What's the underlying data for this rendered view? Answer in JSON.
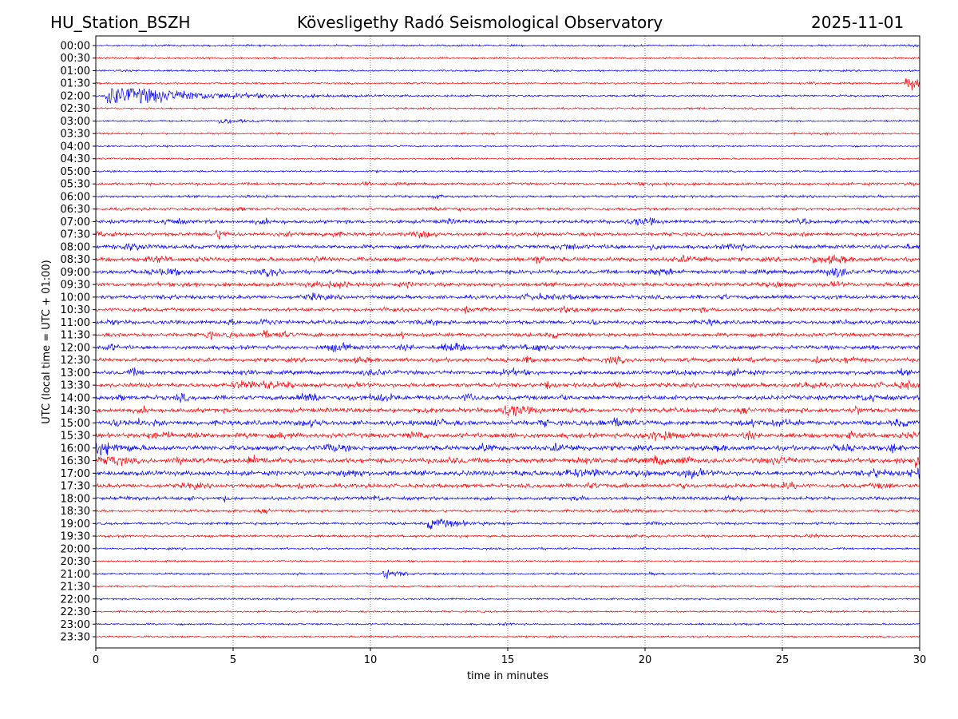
{
  "chart_data": {
    "type": "line",
    "title_left": "HU_Station_BSZH",
    "title_center": "Kövesligethy Radó Seismological Observatory",
    "title_right": "2025-11-01",
    "xlabel": "time in minutes",
    "ylabel": "UTC (local time = UTC + 01:00)",
    "xlim": [
      0,
      30
    ],
    "x_ticks": [
      "0",
      "5",
      "10",
      "15",
      "20",
      "25",
      "30"
    ],
    "x_tick_values": [
      0,
      5,
      10,
      15,
      20,
      25,
      30
    ],
    "grid": "vertical dotted at x ticks",
    "colors": {
      "even_rows": "#0000ff",
      "odd_rows": "#ff0000",
      "frame": "#000000",
      "grid": "#555555"
    },
    "rows": [
      {
        "label": "00:00",
        "activity": 0.12
      },
      {
        "label": "00:30",
        "activity": 0.12
      },
      {
        "label": "01:00",
        "activity": 0.12
      },
      {
        "label": "01:30",
        "activity": 0.12,
        "events": [
          {
            "t": 29.5,
            "amp": 0.9,
            "dur": 1.2
          }
        ]
      },
      {
        "label": "02:00",
        "activity": 0.15,
        "events": [
          {
            "t": 0.4,
            "amp": 1.6,
            "dur": 2.5
          }
        ]
      },
      {
        "label": "02:30",
        "activity": 0.1
      },
      {
        "label": "03:00",
        "activity": 0.1,
        "events": [
          {
            "t": 4.5,
            "amp": 0.4,
            "dur": 0.6
          }
        ]
      },
      {
        "label": "03:30",
        "activity": 0.1
      },
      {
        "label": "04:00",
        "activity": 0.1
      },
      {
        "label": "04:30",
        "activity": 0.1
      },
      {
        "label": "05:00",
        "activity": 0.12
      },
      {
        "label": "05:30",
        "activity": 0.3
      },
      {
        "label": "06:00",
        "activity": 0.25
      },
      {
        "label": "06:30",
        "activity": 0.3
      },
      {
        "label": "07:00",
        "activity": 0.5
      },
      {
        "label": "07:30",
        "activity": 0.5
      },
      {
        "label": "08:00",
        "activity": 0.55
      },
      {
        "label": "08:30",
        "activity": 0.65
      },
      {
        "label": "09:00",
        "activity": 0.65
      },
      {
        "label": "09:30",
        "activity": 0.6
      },
      {
        "label": "10:00",
        "activity": 0.55
      },
      {
        "label": "10:30",
        "activity": 0.5
      },
      {
        "label": "11:00",
        "activity": 0.55
      },
      {
        "label": "11:30",
        "activity": 0.55
      },
      {
        "label": "12:00",
        "activity": 0.6
      },
      {
        "label": "12:30",
        "activity": 0.6
      },
      {
        "label": "13:00",
        "activity": 0.6
      },
      {
        "label": "13:30",
        "activity": 0.65
      },
      {
        "label": "14:00",
        "activity": 0.7
      },
      {
        "label": "14:30",
        "activity": 0.7
      },
      {
        "label": "15:00",
        "activity": 0.75
      },
      {
        "label": "15:30",
        "activity": 0.75
      },
      {
        "label": "16:00",
        "activity": 0.8
      },
      {
        "label": "16:30",
        "activity": 0.8
      },
      {
        "label": "17:00",
        "activity": 0.75
      },
      {
        "label": "17:30",
        "activity": 0.6
      },
      {
        "label": "18:00",
        "activity": 0.45
      },
      {
        "label": "18:30",
        "activity": 0.3
      },
      {
        "label": "19:00",
        "activity": 0.25,
        "events": [
          {
            "t": 12.1,
            "amp": 0.7,
            "dur": 1.0
          }
        ]
      },
      {
        "label": "19:30",
        "activity": 0.25
      },
      {
        "label": "20:00",
        "activity": 0.15
      },
      {
        "label": "20:30",
        "activity": 0.12
      },
      {
        "label": "21:00",
        "activity": 0.15,
        "events": [
          {
            "t": 10.5,
            "amp": 0.6,
            "dur": 0.5
          }
        ]
      },
      {
        "label": "21:30",
        "activity": 0.1
      },
      {
        "label": "22:00",
        "activity": 0.12
      },
      {
        "label": "22:30",
        "activity": 0.1
      },
      {
        "label": "23:00",
        "activity": 0.12
      },
      {
        "label": "23:30",
        "activity": 0.12
      }
    ]
  }
}
